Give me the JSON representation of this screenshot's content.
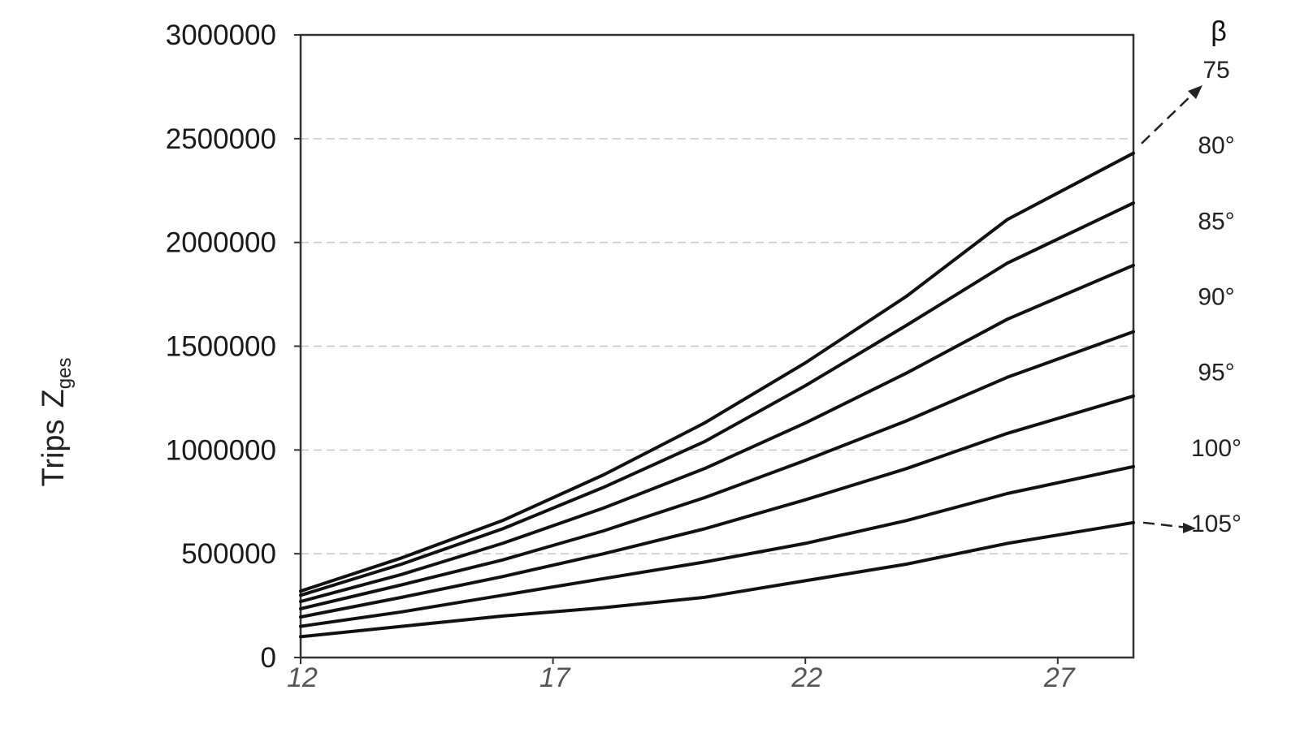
{
  "chart_data": {
    "type": "line",
    "title": "",
    "xlabel": "",
    "ylabel": "Trips",
    "ylabel_symbol": "Z",
    "ylabel_subscript": "ges",
    "legend_title": "β",
    "x_ticks": [
      "12",
      "17",
      "22",
      "27"
    ],
    "y_ticks": [
      "0",
      "500000",
      "1000000",
      "1500000",
      "2000000",
      "2500000",
      "3000000"
    ],
    "xlim": [
      12,
      28.5
    ],
    "ylim": [
      0,
      3000000
    ],
    "grid": "horizontal",
    "x": [
      12,
      14,
      16,
      18,
      20,
      22,
      24,
      26,
      28.5
    ],
    "series": [
      {
        "name": "75",
        "values": [
          320000,
          480000,
          660000,
          880000,
          1130000,
          1420000,
          1740000,
          2110000,
          2430000
        ]
      },
      {
        "name": "80°",
        "values": [
          300000,
          450000,
          620000,
          820000,
          1040000,
          1310000,
          1600000,
          1900000,
          2190000
        ]
      },
      {
        "name": "85°",
        "values": [
          270000,
          400000,
          550000,
          720000,
          910000,
          1130000,
          1370000,
          1630000,
          1890000
        ]
      },
      {
        "name": "90°",
        "values": [
          235000,
          350000,
          470000,
          610000,
          770000,
          950000,
          1140000,
          1350000,
          1570000
        ]
      },
      {
        "name": "95°",
        "values": [
          195000,
          290000,
          390000,
          500000,
          620000,
          760000,
          910000,
          1080000,
          1260000
        ]
      },
      {
        "name": "100°",
        "values": [
          150000,
          220000,
          300000,
          380000,
          460000,
          550000,
          660000,
          790000,
          920000
        ]
      },
      {
        "name": "105°",
        "values": [
          100000,
          150000,
          200000,
          240000,
          290000,
          370000,
          450000,
          550000,
          650000
        ]
      }
    ]
  }
}
